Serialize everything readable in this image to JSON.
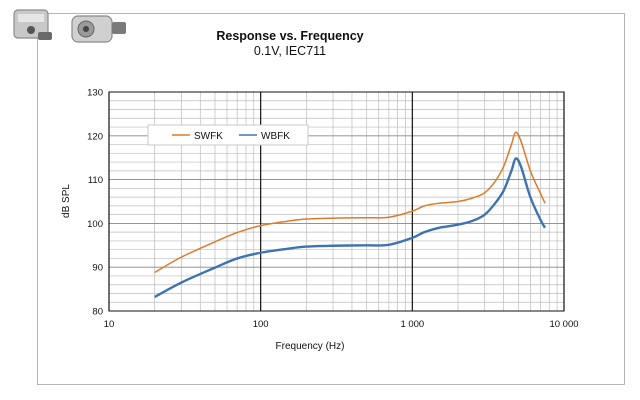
{
  "chart_data": {
    "type": "line",
    "title": "Response vs. Frequency",
    "subtitle": "0.1V, IEC711",
    "xlabel": "Frequency (Hz)",
    "ylabel": "dB SPL",
    "xscale": "log",
    "xlim": [
      10,
      10000
    ],
    "ylim": [
      80,
      130
    ],
    "xticks": [
      10,
      100,
      1000,
      10000
    ],
    "xtick_labels": [
      "10",
      "100",
      "1 000",
      "10 000"
    ],
    "yticks": [
      80,
      90,
      100,
      110,
      120,
      130
    ],
    "ytick_labels": [
      "80",
      "90",
      "100",
      "110",
      "120",
      "130"
    ],
    "grid": true,
    "legend_position": "upper-left",
    "series": [
      {
        "name": "SWFK",
        "color": "#e07a2a",
        "points": [
          [
            20,
            88.8
          ],
          [
            30,
            92.3
          ],
          [
            50,
            95.8
          ],
          [
            70,
            97.9
          ],
          [
            100,
            99.5
          ],
          [
            150,
            100.5
          ],
          [
            200,
            101.0
          ],
          [
            300,
            101.2
          ],
          [
            500,
            101.3
          ],
          [
            700,
            101.4
          ],
          [
            1000,
            102.8
          ],
          [
            1200,
            104.0
          ],
          [
            1500,
            104.6
          ],
          [
            2000,
            105.0
          ],
          [
            2500,
            105.8
          ],
          [
            3000,
            107.0
          ],
          [
            3500,
            109.5
          ],
          [
            4000,
            113.0
          ],
          [
            4500,
            118.0
          ],
          [
            4800,
            120.8
          ],
          [
            5200,
            118.8
          ],
          [
            6000,
            112.0
          ],
          [
            7000,
            106.8
          ],
          [
            7500,
            104.6
          ]
        ]
      },
      {
        "name": "WBFK",
        "color": "#3d73b0",
        "points": [
          [
            20,
            83.2
          ],
          [
            30,
            86.5
          ],
          [
            50,
            89.9
          ],
          [
            70,
            92.0
          ],
          [
            100,
            93.3
          ],
          [
            150,
            94.2
          ],
          [
            200,
            94.7
          ],
          [
            300,
            94.9
          ],
          [
            500,
            95.0
          ],
          [
            700,
            95.1
          ],
          [
            1000,
            96.7
          ],
          [
            1200,
            98.0
          ],
          [
            1500,
            99.0
          ],
          [
            2000,
            99.7
          ],
          [
            2500,
            100.6
          ],
          [
            3000,
            102.0
          ],
          [
            3500,
            104.5
          ],
          [
            4000,
            107.5
          ],
          [
            4500,
            112.0
          ],
          [
            4800,
            114.8
          ],
          [
            5200,
            113.0
          ],
          [
            6000,
            106.0
          ],
          [
            7000,
            100.8
          ],
          [
            7500,
            99.0
          ]
        ]
      }
    ]
  },
  "images": {
    "product_a": "microphone-product-photo",
    "product_b": "microphone-product-photo"
  }
}
